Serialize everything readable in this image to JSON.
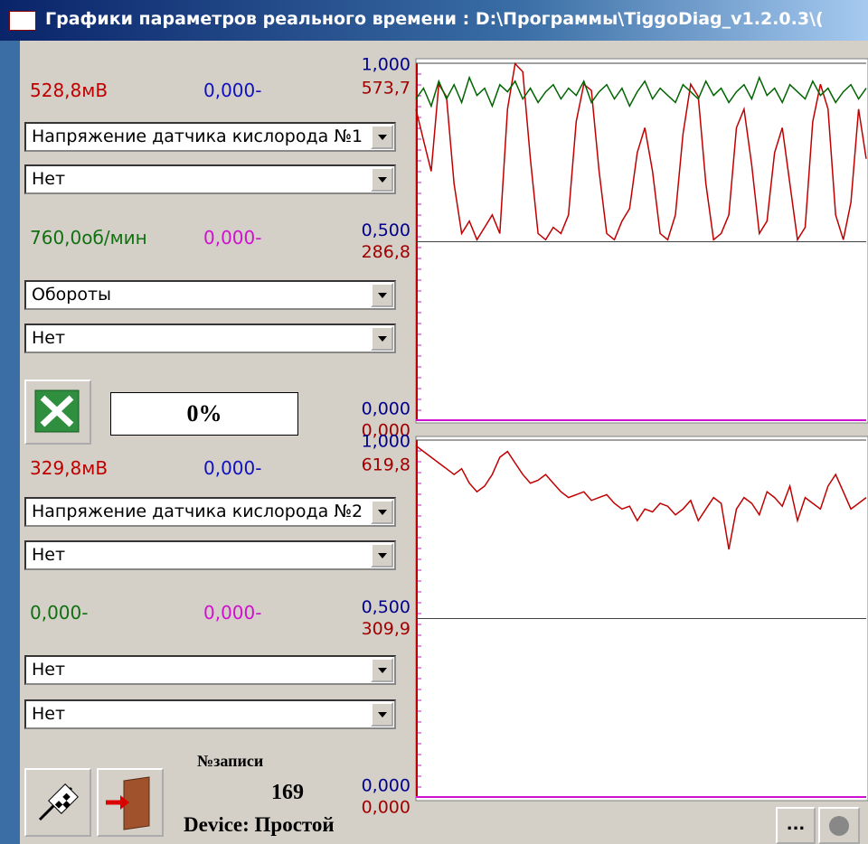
{
  "title_bar": {
    "title": "Графики параметров реального времени : D:\\Программы\\TiggoDiag_v1.2.0.3\\("
  },
  "panels": [
    {
      "readings": [
        "528,8мВ",
        "0,000-"
      ],
      "selectors": [
        "Напряжение датчика кислорода №1",
        "Нет"
      ]
    },
    {
      "readings": [
        "760,0об/мин",
        "0,000-"
      ],
      "selectors": [
        "Обороты",
        "Нет"
      ]
    },
    {
      "readings": [
        "329,8мВ",
        "0,000-"
      ],
      "selectors": [
        "Напряжение датчика кислорода №2",
        "Нет"
      ]
    },
    {
      "readings": [
        "0,000-",
        "0,000-"
      ],
      "selectors": [
        "Нет",
        "Нет"
      ]
    }
  ],
  "progress": "0%",
  "footer": {
    "record_label": "№записи",
    "record_number": "169",
    "device_status": "Device: Простой",
    "more_button": "..."
  },
  "charts": [
    {
      "grid": true,
      "left_axis": {
        "color": "#00008b",
        "ylim": [
          0,
          1
        ],
        "yticks": [
          {
            "value": 0,
            "label": "0,000"
          },
          {
            "value": 0.5,
            "label": "0,500"
          },
          {
            "value": 1,
            "label": "1,000"
          }
        ]
      },
      "right_axis": {
        "color": "#a00000",
        "ylim": [
          0,
          573.7
        ],
        "yticks": [
          {
            "value": 0,
            "label": "0,000"
          },
          {
            "value": 286.8,
            "label": "286,8"
          },
          {
            "value": 573.7,
            "label": "573,7"
          }
        ]
      },
      "series": [
        {
          "color": "#c00000",
          "axis": "right",
          "values": [
            500,
            450,
            400,
            540,
            520,
            380,
            300,
            320,
            290,
            310,
            330,
            300,
            500,
            573,
            560,
            420,
            300,
            290,
            310,
            300,
            330,
            480,
            540,
            530,
            400,
            300,
            290,
            320,
            340,
            430,
            470,
            400,
            300,
            290,
            330,
            460,
            540,
            520,
            380,
            290,
            300,
            330,
            470,
            500,
            410,
            300,
            320,
            430,
            470,
            380,
            290,
            310,
            480,
            540,
            500,
            330,
            290,
            350,
            500,
            420
          ]
        },
        {
          "color": "#006400",
          "axis": "left",
          "values": [
            0.9,
            0.93,
            0.88,
            0.95,
            0.9,
            0.94,
            0.89,
            0.96,
            0.91,
            0.93,
            0.88,
            0.94,
            0.92,
            0.95,
            0.9,
            0.93,
            0.89,
            0.92,
            0.94,
            0.9,
            0.93,
            0.91,
            0.95,
            0.89,
            0.92,
            0.94,
            0.9,
            0.93,
            0.88,
            0.92,
            0.95,
            0.9,
            0.93,
            0.91,
            0.89,
            0.94,
            0.92,
            0.9,
            0.95,
            0.91,
            0.93,
            0.89,
            0.92,
            0.94,
            0.9,
            0.96,
            0.91,
            0.93,
            0.89,
            0.94,
            0.92,
            0.9,
            0.95,
            0.91,
            0.93,
            0.89,
            0.92,
            0.94,
            0.9,
            0.93
          ]
        }
      ]
    },
    {
      "grid": true,
      "left_axis": {
        "color": "#00008b",
        "ylim": [
          0,
          1
        ],
        "yticks": [
          {
            "value": 0,
            "label": "0,000"
          },
          {
            "value": 0.5,
            "label": "0,500"
          },
          {
            "value": 1,
            "label": "1,000"
          }
        ]
      },
      "right_axis": {
        "color": "#a00000",
        "ylim": [
          0,
          619.8
        ],
        "yticks": [
          {
            "value": 0,
            "label": "0,000"
          },
          {
            "value": 309.9,
            "label": "309,9"
          },
          {
            "value": 619.8,
            "label": "619,8"
          }
        ]
      },
      "series": [
        {
          "color": "#c00000",
          "axis": "right",
          "values": [
            610,
            600,
            590,
            580,
            570,
            560,
            570,
            545,
            530,
            540,
            560,
            590,
            600,
            580,
            560,
            545,
            550,
            560,
            545,
            530,
            520,
            525,
            530,
            515,
            520,
            525,
            510,
            500,
            505,
            480,
            500,
            495,
            510,
            505,
            490,
            500,
            515,
            480,
            500,
            520,
            510,
            430,
            500,
            520,
            510,
            490,
            530,
            520,
            505,
            540,
            480,
            520,
            510,
            500,
            540,
            560,
            530,
            500,
            510,
            520
          ]
        }
      ]
    }
  ]
}
